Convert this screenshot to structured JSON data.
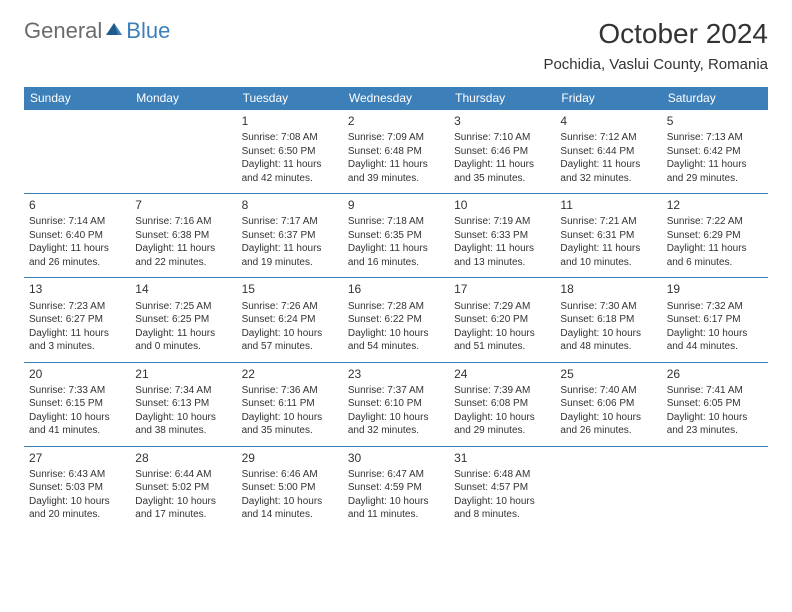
{
  "brand": {
    "part1": "General",
    "part2": "Blue"
  },
  "title": "October 2024",
  "location": "Pochidia, Vaslui County, Romania",
  "colors": {
    "header_bg": "#3d7fb8",
    "header_text": "#ffffff",
    "cell_border": "#3d7fb8",
    "body_text": "#333333",
    "logo_gray": "#6b6b6b",
    "logo_blue": "#3d7fb8",
    "page_bg": "#ffffff"
  },
  "typography": {
    "title_fontsize": 28,
    "location_fontsize": 15,
    "dow_fontsize": 12,
    "daynum_fontsize": 12,
    "cell_fontsize": 10,
    "font_family": "Arial"
  },
  "dow": [
    "Sunday",
    "Monday",
    "Tuesday",
    "Wednesday",
    "Thursday",
    "Friday",
    "Saturday"
  ],
  "weeks": [
    [
      null,
      null,
      {
        "n": "1",
        "sr": "Sunrise: 7:08 AM",
        "ss": "Sunset: 6:50 PM",
        "d1": "Daylight: 11 hours",
        "d2": "and 42 minutes."
      },
      {
        "n": "2",
        "sr": "Sunrise: 7:09 AM",
        "ss": "Sunset: 6:48 PM",
        "d1": "Daylight: 11 hours",
        "d2": "and 39 minutes."
      },
      {
        "n": "3",
        "sr": "Sunrise: 7:10 AM",
        "ss": "Sunset: 6:46 PM",
        "d1": "Daylight: 11 hours",
        "d2": "and 35 minutes."
      },
      {
        "n": "4",
        "sr": "Sunrise: 7:12 AM",
        "ss": "Sunset: 6:44 PM",
        "d1": "Daylight: 11 hours",
        "d2": "and 32 minutes."
      },
      {
        "n": "5",
        "sr": "Sunrise: 7:13 AM",
        "ss": "Sunset: 6:42 PM",
        "d1": "Daylight: 11 hours",
        "d2": "and 29 minutes."
      }
    ],
    [
      {
        "n": "6",
        "sr": "Sunrise: 7:14 AM",
        "ss": "Sunset: 6:40 PM",
        "d1": "Daylight: 11 hours",
        "d2": "and 26 minutes."
      },
      {
        "n": "7",
        "sr": "Sunrise: 7:16 AM",
        "ss": "Sunset: 6:38 PM",
        "d1": "Daylight: 11 hours",
        "d2": "and 22 minutes."
      },
      {
        "n": "8",
        "sr": "Sunrise: 7:17 AM",
        "ss": "Sunset: 6:37 PM",
        "d1": "Daylight: 11 hours",
        "d2": "and 19 minutes."
      },
      {
        "n": "9",
        "sr": "Sunrise: 7:18 AM",
        "ss": "Sunset: 6:35 PM",
        "d1": "Daylight: 11 hours",
        "d2": "and 16 minutes."
      },
      {
        "n": "10",
        "sr": "Sunrise: 7:19 AM",
        "ss": "Sunset: 6:33 PM",
        "d1": "Daylight: 11 hours",
        "d2": "and 13 minutes."
      },
      {
        "n": "11",
        "sr": "Sunrise: 7:21 AM",
        "ss": "Sunset: 6:31 PM",
        "d1": "Daylight: 11 hours",
        "d2": "and 10 minutes."
      },
      {
        "n": "12",
        "sr": "Sunrise: 7:22 AM",
        "ss": "Sunset: 6:29 PM",
        "d1": "Daylight: 11 hours",
        "d2": "and 6 minutes."
      }
    ],
    [
      {
        "n": "13",
        "sr": "Sunrise: 7:23 AM",
        "ss": "Sunset: 6:27 PM",
        "d1": "Daylight: 11 hours",
        "d2": "and 3 minutes."
      },
      {
        "n": "14",
        "sr": "Sunrise: 7:25 AM",
        "ss": "Sunset: 6:25 PM",
        "d1": "Daylight: 11 hours",
        "d2": "and 0 minutes."
      },
      {
        "n": "15",
        "sr": "Sunrise: 7:26 AM",
        "ss": "Sunset: 6:24 PM",
        "d1": "Daylight: 10 hours",
        "d2": "and 57 minutes."
      },
      {
        "n": "16",
        "sr": "Sunrise: 7:28 AM",
        "ss": "Sunset: 6:22 PM",
        "d1": "Daylight: 10 hours",
        "d2": "and 54 minutes."
      },
      {
        "n": "17",
        "sr": "Sunrise: 7:29 AM",
        "ss": "Sunset: 6:20 PM",
        "d1": "Daylight: 10 hours",
        "d2": "and 51 minutes."
      },
      {
        "n": "18",
        "sr": "Sunrise: 7:30 AM",
        "ss": "Sunset: 6:18 PM",
        "d1": "Daylight: 10 hours",
        "d2": "and 48 minutes."
      },
      {
        "n": "19",
        "sr": "Sunrise: 7:32 AM",
        "ss": "Sunset: 6:17 PM",
        "d1": "Daylight: 10 hours",
        "d2": "and 44 minutes."
      }
    ],
    [
      {
        "n": "20",
        "sr": "Sunrise: 7:33 AM",
        "ss": "Sunset: 6:15 PM",
        "d1": "Daylight: 10 hours",
        "d2": "and 41 minutes."
      },
      {
        "n": "21",
        "sr": "Sunrise: 7:34 AM",
        "ss": "Sunset: 6:13 PM",
        "d1": "Daylight: 10 hours",
        "d2": "and 38 minutes."
      },
      {
        "n": "22",
        "sr": "Sunrise: 7:36 AM",
        "ss": "Sunset: 6:11 PM",
        "d1": "Daylight: 10 hours",
        "d2": "and 35 minutes."
      },
      {
        "n": "23",
        "sr": "Sunrise: 7:37 AM",
        "ss": "Sunset: 6:10 PM",
        "d1": "Daylight: 10 hours",
        "d2": "and 32 minutes."
      },
      {
        "n": "24",
        "sr": "Sunrise: 7:39 AM",
        "ss": "Sunset: 6:08 PM",
        "d1": "Daylight: 10 hours",
        "d2": "and 29 minutes."
      },
      {
        "n": "25",
        "sr": "Sunrise: 7:40 AM",
        "ss": "Sunset: 6:06 PM",
        "d1": "Daylight: 10 hours",
        "d2": "and 26 minutes."
      },
      {
        "n": "26",
        "sr": "Sunrise: 7:41 AM",
        "ss": "Sunset: 6:05 PM",
        "d1": "Daylight: 10 hours",
        "d2": "and 23 minutes."
      }
    ],
    [
      {
        "n": "27",
        "sr": "Sunrise: 6:43 AM",
        "ss": "Sunset: 5:03 PM",
        "d1": "Daylight: 10 hours",
        "d2": "and 20 minutes."
      },
      {
        "n": "28",
        "sr": "Sunrise: 6:44 AM",
        "ss": "Sunset: 5:02 PM",
        "d1": "Daylight: 10 hours",
        "d2": "and 17 minutes."
      },
      {
        "n": "29",
        "sr": "Sunrise: 6:46 AM",
        "ss": "Sunset: 5:00 PM",
        "d1": "Daylight: 10 hours",
        "d2": "and 14 minutes."
      },
      {
        "n": "30",
        "sr": "Sunrise: 6:47 AM",
        "ss": "Sunset: 4:59 PM",
        "d1": "Daylight: 10 hours",
        "d2": "and 11 minutes."
      },
      {
        "n": "31",
        "sr": "Sunrise: 6:48 AM",
        "ss": "Sunset: 4:57 PM",
        "d1": "Daylight: 10 hours",
        "d2": "and 8 minutes."
      },
      null,
      null
    ]
  ]
}
